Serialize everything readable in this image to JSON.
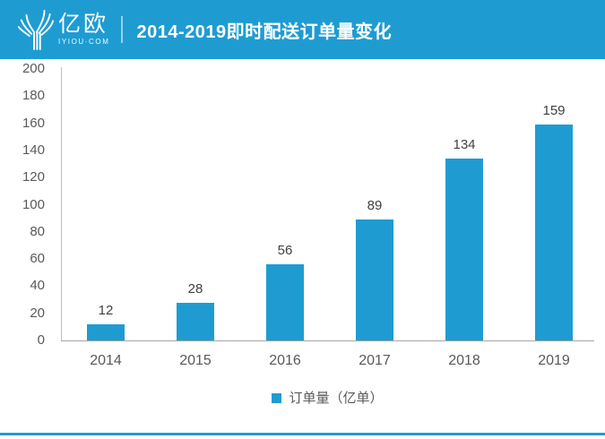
{
  "header": {
    "logo": {
      "brand_name": "亿欧",
      "brand_domain": "IYIOU·COM"
    },
    "title": "2014-2019即时配送订单量变化"
  },
  "chart_data": {
    "type": "bar",
    "title": "2014-2019即时配送订单量变化",
    "categories": [
      "2014",
      "2015",
      "2016",
      "2017",
      "2018",
      "2019"
    ],
    "values": [
      12,
      28,
      56,
      89,
      134,
      159
    ],
    "legend_label": "订单量（亿单）",
    "legend_position": "bottom",
    "xlabel": "",
    "ylabel": "",
    "ylim": [
      0,
      200
    ],
    "y_ticks": [
      0,
      20,
      40,
      60,
      80,
      100,
      120,
      140,
      160,
      180,
      200
    ],
    "grid": false,
    "bar_color": "#1e9cd2"
  },
  "colors": {
    "accent_blue": "#1e9cd2",
    "header_background": "#1e9cd2",
    "axis_line": "#b3b3b3",
    "tick_text": "#595959",
    "value_label_text": "#404040"
  }
}
